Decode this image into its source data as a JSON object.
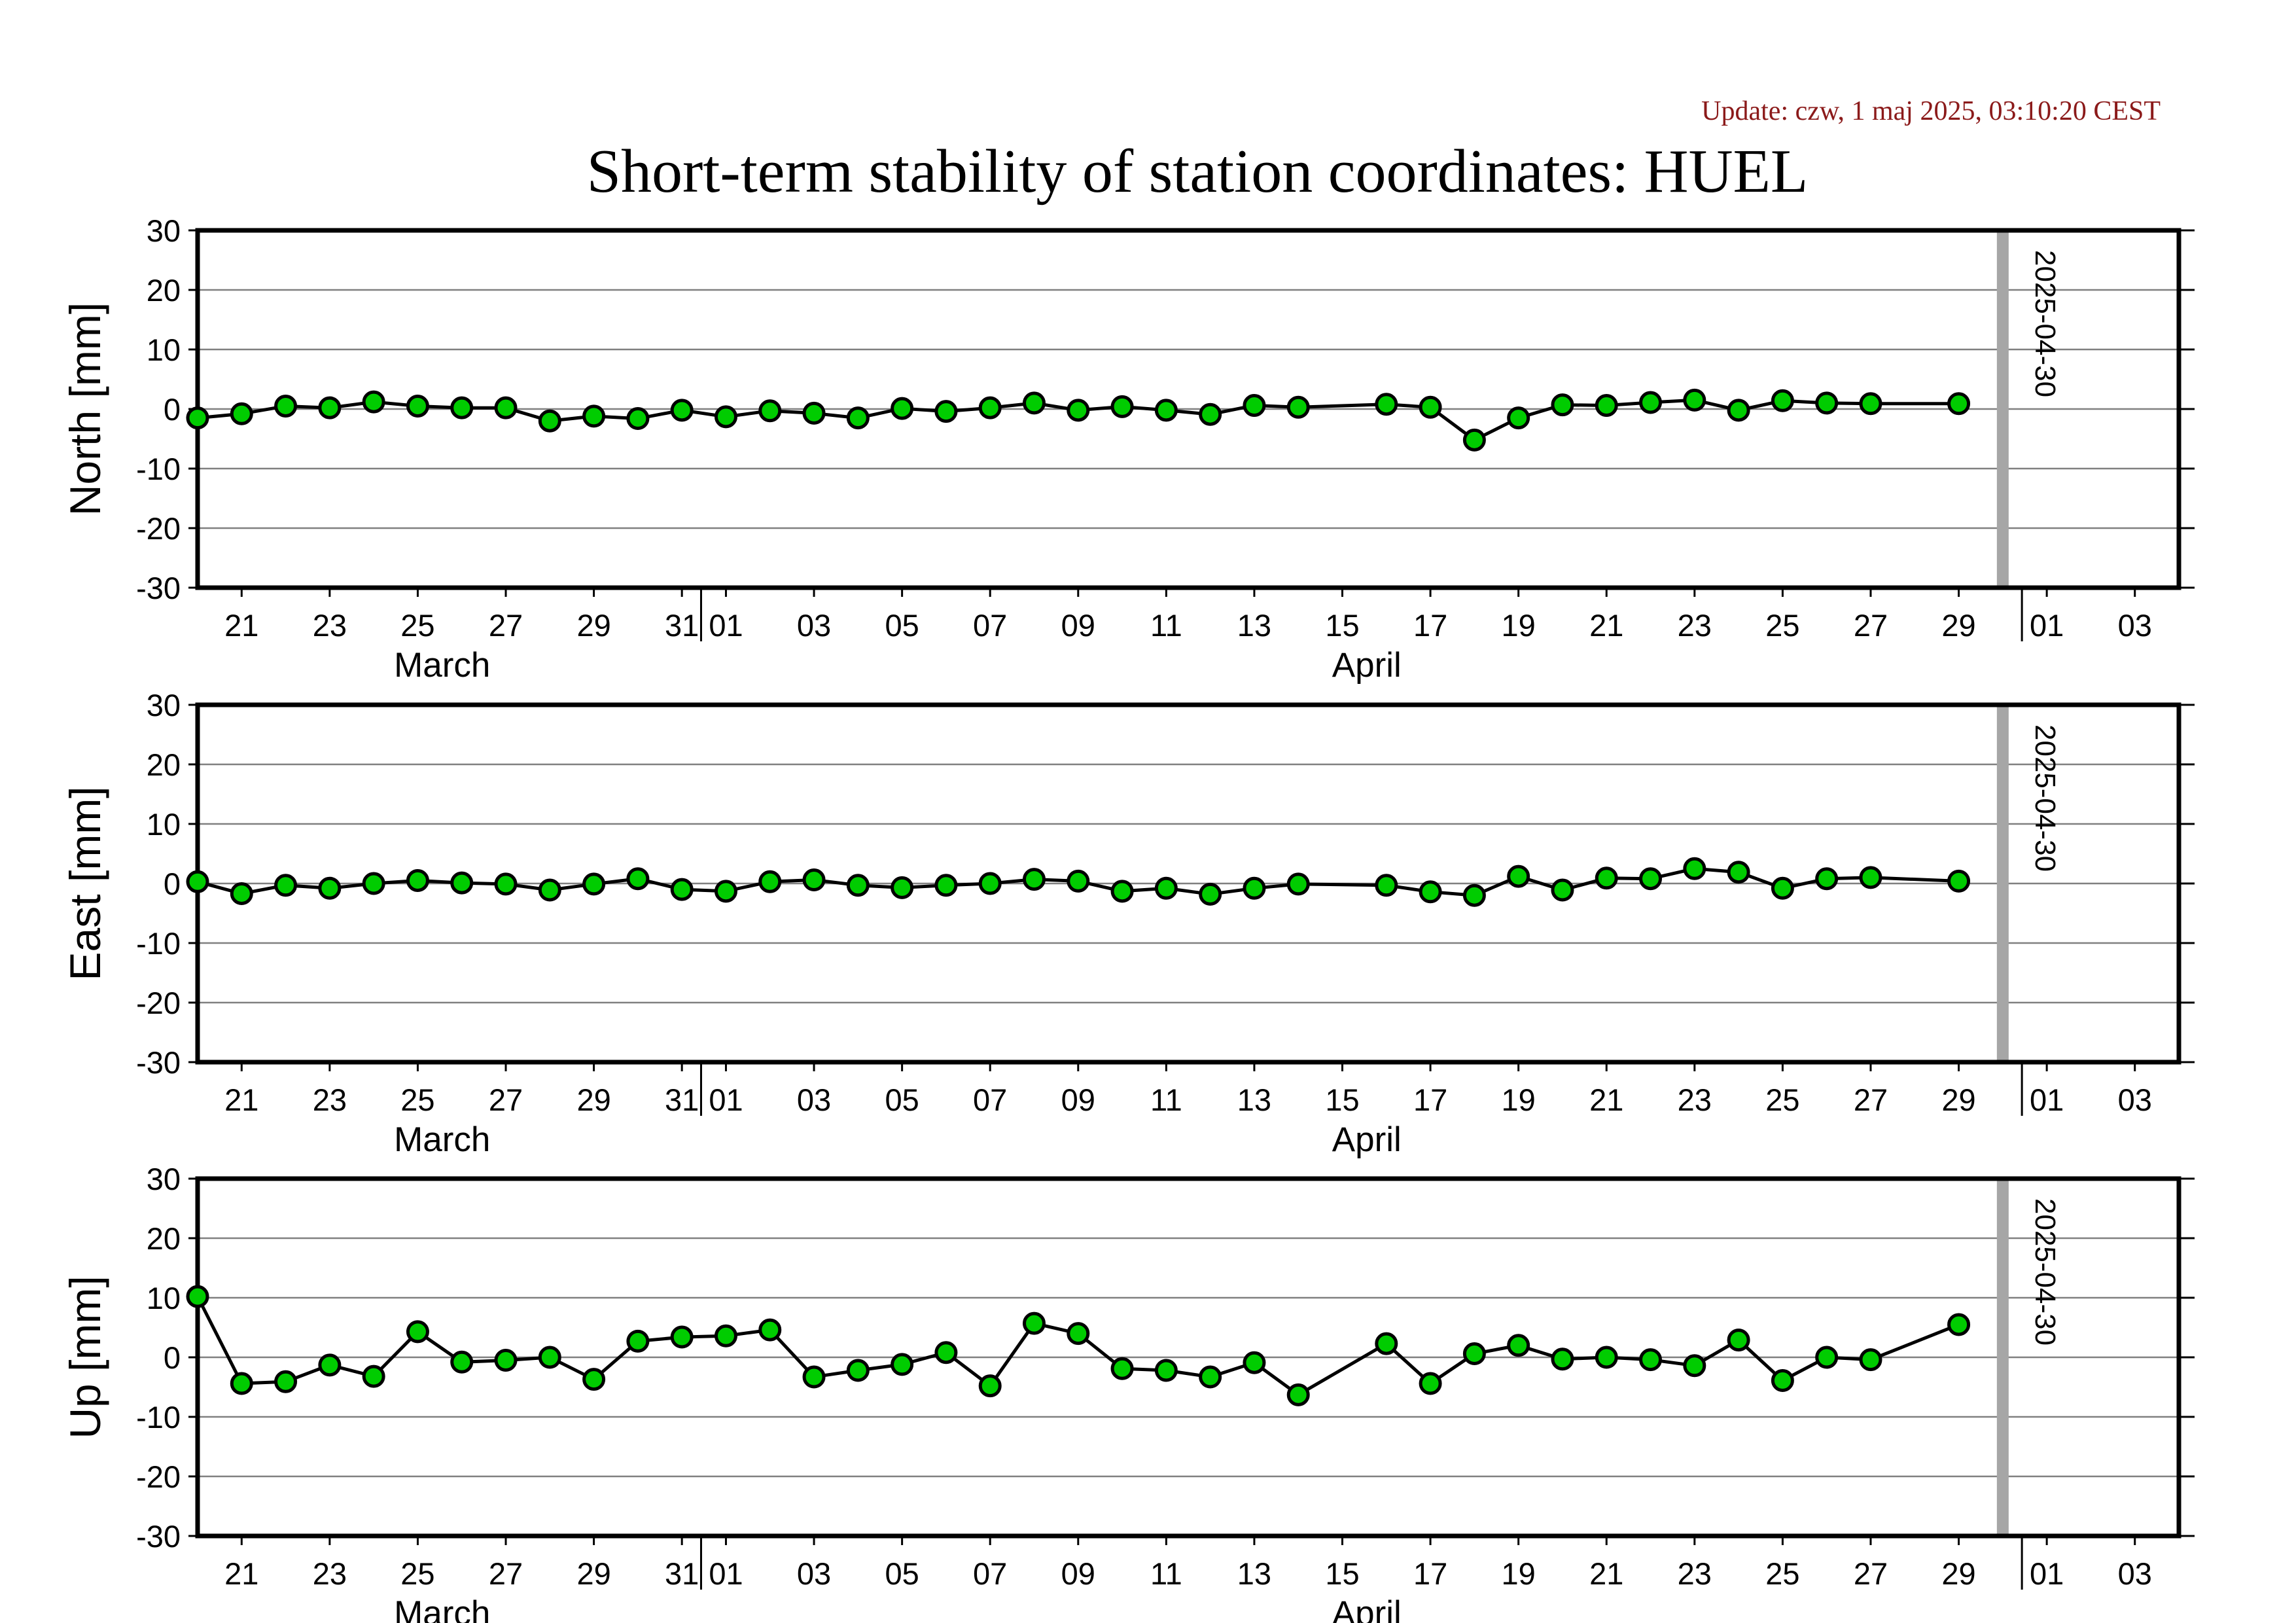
{
  "update_text": "Update: czw, 1 maj 2025, 03:10:20 CEST",
  "title": "Short-term stability of station coordinates: HUEL",
  "colors": {
    "update_text": "#8b1a1a",
    "marker_fill": "#00cc00",
    "marker_edge": "#000000",
    "line": "#000000",
    "gridline": "#808080",
    "date_marker": "#a6a6a6"
  },
  "x_axis": {
    "day_ticks": [
      "21",
      "23",
      "25",
      "27",
      "29",
      "31",
      "01",
      "03",
      "05",
      "07",
      "09",
      "11",
      "13",
      "15",
      "17",
      "19",
      "21",
      "23",
      "25",
      "27",
      "29",
      "01",
      "03"
    ],
    "month_labels": [
      "March",
      "April"
    ]
  },
  "marker_date": "2025-04-30",
  "chart_data": [
    {
      "type": "line",
      "ylabel": "North [mm]",
      "ylim": [
        -30,
        30
      ],
      "yticks": [
        "30",
        "20",
        "10",
        "0",
        "-10",
        "-20",
        "-30"
      ],
      "xlim": [
        "2025-03-20",
        "2025-05-04"
      ],
      "grid": true,
      "x": [
        "2025-03-20",
        "2025-03-21",
        "2025-03-22",
        "2025-03-23",
        "2025-03-24",
        "2025-03-25",
        "2025-03-26",
        "2025-03-27",
        "2025-03-28",
        "2025-03-29",
        "2025-03-30",
        "2025-03-31",
        "2025-04-01",
        "2025-04-02",
        "2025-04-03",
        "2025-04-04",
        "2025-04-05",
        "2025-04-06",
        "2025-04-07",
        "2025-04-08",
        "2025-04-09",
        "2025-04-10",
        "2025-04-11",
        "2025-04-12",
        "2025-04-13",
        "2025-04-14",
        "2025-04-16",
        "2025-04-17",
        "2025-04-18",
        "2025-04-19",
        "2025-04-20",
        "2025-04-21",
        "2025-04-22",
        "2025-04-23",
        "2025-04-24",
        "2025-04-25",
        "2025-04-26",
        "2025-04-27",
        "2025-04-29"
      ],
      "values": [
        -1.5,
        -0.8,
        0.5,
        0.2,
        1.2,
        0.5,
        0.2,
        0.2,
        -2.0,
        -1.2,
        -1.6,
        -0.2,
        -1.3,
        -0.3,
        -0.7,
        -1.5,
        0.1,
        -0.4,
        0.2,
        1.0,
        -0.2,
        0.4,
        -0.2,
        -0.9,
        0.6,
        0.3,
        0.8,
        0.3,
        -5.2,
        -1.5,
        0.7,
        0.6,
        1.1,
        1.5,
        -0.2,
        1.4,
        1.0,
        0.9,
        0.9
      ]
    },
    {
      "type": "line",
      "ylabel": "East [mm]",
      "ylim": [
        -30,
        30
      ],
      "yticks": [
        "30",
        "20",
        "10",
        "0",
        "-10",
        "-20",
        "-30"
      ],
      "xlim": [
        "2025-03-20",
        "2025-05-04"
      ],
      "grid": true,
      "x": [
        "2025-03-20",
        "2025-03-21",
        "2025-03-22",
        "2025-03-23",
        "2025-03-24",
        "2025-03-25",
        "2025-03-26",
        "2025-03-27",
        "2025-03-28",
        "2025-03-29",
        "2025-03-30",
        "2025-03-31",
        "2025-04-01",
        "2025-04-02",
        "2025-04-03",
        "2025-04-04",
        "2025-04-05",
        "2025-04-06",
        "2025-04-07",
        "2025-04-08",
        "2025-04-09",
        "2025-04-10",
        "2025-04-11",
        "2025-04-12",
        "2025-04-13",
        "2025-04-14",
        "2025-04-16",
        "2025-04-17",
        "2025-04-18",
        "2025-04-19",
        "2025-04-20",
        "2025-04-21",
        "2025-04-22",
        "2025-04-23",
        "2025-04-24",
        "2025-04-25",
        "2025-04-26",
        "2025-04-27",
        "2025-04-29"
      ],
      "values": [
        0.3,
        -1.7,
        -0.3,
        -0.8,
        0.0,
        0.5,
        0.1,
        -0.1,
        -1.1,
        -0.1,
        0.8,
        -1.0,
        -1.3,
        0.3,
        0.6,
        -0.3,
        -0.7,
        -0.3,
        0.0,
        0.7,
        0.4,
        -1.3,
        -0.8,
        -1.8,
        -0.8,
        -0.1,
        -0.3,
        -1.4,
        -2.0,
        1.2,
        -1.1,
        0.9,
        0.8,
        2.5,
        1.9,
        -0.8,
        0.8,
        1.0,
        0.4
      ]
    },
    {
      "type": "line",
      "ylabel": "Up [mm]",
      "ylim": [
        -30,
        30
      ],
      "yticks": [
        "30",
        "20",
        "10",
        "0",
        "-10",
        "-20",
        "-30"
      ],
      "xlim": [
        "2025-03-20",
        "2025-05-04"
      ],
      "grid": true,
      "x": [
        "2025-03-20",
        "2025-03-21",
        "2025-03-22",
        "2025-03-23",
        "2025-03-24",
        "2025-03-25",
        "2025-03-26",
        "2025-03-27",
        "2025-03-28",
        "2025-03-29",
        "2025-03-30",
        "2025-03-31",
        "2025-04-01",
        "2025-04-02",
        "2025-04-03",
        "2025-04-04",
        "2025-04-05",
        "2025-04-06",
        "2025-04-07",
        "2025-04-08",
        "2025-04-09",
        "2025-04-10",
        "2025-04-11",
        "2025-04-12",
        "2025-04-13",
        "2025-04-14",
        "2025-04-16",
        "2025-04-17",
        "2025-04-18",
        "2025-04-19",
        "2025-04-20",
        "2025-04-21",
        "2025-04-22",
        "2025-04-23",
        "2025-04-24",
        "2025-04-25",
        "2025-04-26",
        "2025-04-27",
        "2025-04-29"
      ],
      "values": [
        10.2,
        -4.4,
        -4.1,
        -1.3,
        -3.2,
        4.3,
        -0.8,
        -0.5,
        0.0,
        -3.7,
        2.7,
        3.4,
        3.6,
        4.6,
        -3.3,
        -2.2,
        -1.2,
        0.8,
        -4.8,
        5.7,
        4.0,
        -1.9,
        -2.2,
        -3.3,
        -0.9,
        -6.3,
        2.3,
        -4.4,
        0.6,
        2.0,
        -0.3,
        0.0,
        -0.4,
        -1.4,
        2.9,
        -3.9,
        0.0,
        -0.4,
        5.5
      ]
    }
  ]
}
